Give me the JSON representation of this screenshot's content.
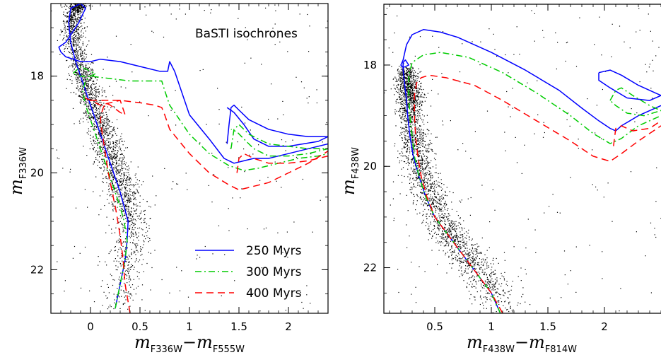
{
  "chart_data": [
    {
      "type": "scatter",
      "title": "BaSTI isochrones",
      "xlabel": {
        "main": "m",
        "sub": "F336W",
        "op": "−",
        "main2": "m",
        "sub2": "F555W"
      },
      "ylabel": {
        "main": "m",
        "sub": "F336W"
      },
      "xlim": [
        -0.4,
        2.4
      ],
      "ylim": [
        22.9,
        16.5
      ],
      "y_inverted": true,
      "xticks": [
        0,
        0.5,
        1,
        1.5,
        2
      ],
      "xtick_labels": [
        "0",
        "0.5",
        "1",
        "1.5",
        "2"
      ],
      "yticks": [
        18,
        20,
        22
      ],
      "ytick_labels": [
        "18",
        "20",
        "22"
      ],
      "legend": {
        "placement": "bottom-right"
      },
      "series": [
        {
          "name": "250 Myrs",
          "color": "#0000ff",
          "dash": "solid",
          "x": [
            0.25,
            0.3,
            0.35,
            0.37,
            0.38,
            0.34,
            0.3,
            0.25,
            0.2,
            0.15,
            0.1,
            0.05,
            0.0,
            -0.05,
            -0.1,
            -0.15,
            -0.2,
            -0.22,
            -0.2,
            -0.1,
            -0.05,
            -0.12,
            -0.25,
            -0.32,
            -0.3,
            -0.25,
            -0.1,
            0.0,
            0.1,
            0.3,
            0.5,
            0.7,
            0.78,
            0.8,
            0.85,
            0.9,
            1.0,
            1.2,
            1.35,
            1.45,
            1.55,
            1.65,
            1.8,
            2.0,
            2.2,
            2.4
          ],
          "y": [
            22.8,
            22.3,
            21.8,
            21.4,
            21.0,
            20.7,
            20.4,
            20.1,
            19.8,
            19.5,
            19.2,
            18.9,
            18.6,
            18.3,
            18.0,
            17.7,
            17.3,
            16.9,
            16.6,
            16.5,
            16.6,
            16.9,
            17.3,
            17.4,
            17.5,
            17.6,
            17.7,
            17.7,
            17.65,
            17.7,
            17.8,
            17.9,
            17.9,
            17.7,
            17.9,
            18.2,
            18.8,
            19.3,
            19.7,
            19.8,
            19.75,
            19.7,
            19.7,
            19.6,
            19.5,
            19.4
          ]
        },
        {
          "name": "250 Myrs loop",
          "color": "#0000ff",
          "dash": "solid",
          "legend": false,
          "x": [
            1.38,
            1.4,
            1.42,
            1.45,
            1.5,
            1.6,
            1.8,
            2.0,
            2.2,
            2.4,
            2.3,
            2.0,
            1.8,
            1.65,
            1.55,
            1.45,
            1.38
          ],
          "y": [
            19.4,
            19.0,
            18.65,
            18.6,
            18.7,
            18.9,
            19.1,
            19.2,
            19.25,
            19.25,
            19.35,
            19.45,
            19.45,
            19.3,
            19.0,
            18.75,
            18.65
          ]
        },
        {
          "name": "300 Myrs",
          "color": "#00cc00",
          "dash": "dashdot",
          "x": [
            0.25,
            0.3,
            0.35,
            0.37,
            0.34,
            0.3,
            0.25,
            0.2,
            0.15,
            0.1,
            0.05,
            0.0,
            -0.05,
            -0.08,
            -0.05,
            0.0,
            0.05,
            -0.1,
            -0.18,
            -0.1,
            0.0,
            0.2,
            0.4,
            0.6,
            0.72,
            0.75,
            0.8,
            0.9,
            1.0,
            1.2,
            1.4,
            1.55,
            1.7,
            1.9,
            2.1,
            2.3,
            2.4
          ],
          "y": [
            22.8,
            22.3,
            21.8,
            21.4,
            21.0,
            20.7,
            20.4,
            20.1,
            19.8,
            19.5,
            19.2,
            18.9,
            18.6,
            18.3,
            18.1,
            18.0,
            17.95,
            17.8,
            17.95,
            18.0,
            18.0,
            18.05,
            18.1,
            18.1,
            18.1,
            18.3,
            18.6,
            18.9,
            19.2,
            19.6,
            19.85,
            19.95,
            19.9,
            19.8,
            19.7,
            19.65,
            19.6
          ]
        },
        {
          "name": "300 Myrs loop",
          "color": "#00cc00",
          "dash": "dashdot",
          "legend": false,
          "x": [
            1.42,
            1.45,
            1.5,
            1.6,
            1.8,
            2.0,
            2.2,
            2.4,
            2.2,
            2.0,
            1.8,
            1.65,
            1.55,
            1.48,
            1.42
          ],
          "y": [
            19.5,
            19.1,
            19.0,
            19.2,
            19.4,
            19.45,
            19.5,
            19.5,
            19.6,
            19.65,
            19.65,
            19.5,
            19.3,
            19.15,
            19.1
          ]
        },
        {
          "name": "400 Myrs",
          "color": "#ff0000",
          "dash": "dashed",
          "x": [
            0.4,
            0.35,
            0.33,
            0.3,
            0.26,
            0.22,
            0.18,
            0.15,
            0.12,
            0.1,
            0.12,
            0.15,
            0.2,
            0.3,
            0.35,
            0.3,
            0.1,
            0.0,
            -0.05,
            0.0,
            0.1,
            0.3,
            0.5,
            0.65,
            0.72,
            0.75,
            0.8,
            1.0,
            1.2,
            1.4,
            1.5,
            1.6,
            1.8,
            2.0,
            2.2,
            2.4
          ],
          "y": [
            22.9,
            22.3,
            21.8,
            21.3,
            20.8,
            20.4,
            20.0,
            19.6,
            19.2,
            18.9,
            18.7,
            18.55,
            18.6,
            18.75,
            18.8,
            18.5,
            18.6,
            18.5,
            18.45,
            18.5,
            18.5,
            18.5,
            18.55,
            18.6,
            18.65,
            18.8,
            19.1,
            19.6,
            20.0,
            20.25,
            20.35,
            20.3,
            20.2,
            20.0,
            19.8,
            19.55
          ]
        },
        {
          "name": "400 Myrs loop",
          "color": "#ff0000",
          "dash": "dashed",
          "legend": false,
          "x": [
            1.48,
            1.5,
            1.55,
            1.65,
            1.8,
            2.0,
            2.2,
            2.4
          ],
          "y": [
            20.0,
            19.7,
            19.6,
            19.7,
            19.8,
            19.8,
            19.75,
            19.65
          ]
        }
      ]
    },
    {
      "type": "scatter",
      "title": "",
      "xlabel": {
        "main": "m",
        "sub": "F438W",
        "op": "−",
        "main2": "m",
        "sub2": "F814W"
      },
      "ylabel": {
        "main": "m",
        "sub": "F438W"
      },
      "xlim": [
        0.05,
        2.5
      ],
      "ylim": [
        22.9,
        16.8
      ],
      "y_inverted": true,
      "xticks": [
        0.5,
        1,
        1.5,
        2
      ],
      "xtick_labels": [
        "0.5",
        "1",
        "1.5",
        "2"
      ],
      "yticks": [
        18,
        20,
        22
      ],
      "ytick_labels": [
        "18",
        "20",
        "22"
      ],
      "series": [
        {
          "name": "250 Myrs",
          "color": "#0000ff",
          "dash": "solid",
          "x": [
            1.08,
            1.0,
            0.9,
            0.8,
            0.7,
            0.6,
            0.5,
            0.42,
            0.36,
            0.31,
            0.28,
            0.26,
            0.25,
            0.24,
            0.23,
            0.22,
            0.22,
            0.24,
            0.27,
            0.22,
            0.2,
            0.22,
            0.25,
            0.3,
            0.4,
            0.55,
            0.7,
            1.0,
            1.3,
            1.6,
            1.8,
            1.95,
            2.05,
            2.1,
            2.15,
            2.3,
            2.5
          ],
          "y": [
            22.9,
            22.5,
            22.2,
            21.9,
            21.6,
            21.3,
            21.0,
            20.6,
            20.2,
            19.8,
            19.4,
            19.0,
            18.7,
            18.5,
            18.3,
            18.1,
            17.95,
            17.9,
            18.0,
            18.05,
            18.0,
            17.9,
            17.6,
            17.4,
            17.3,
            17.35,
            17.45,
            17.75,
            18.1,
            18.5,
            18.85,
            19.1,
            19.25,
            19.3,
            19.2,
            19.0,
            18.8
          ]
        },
        {
          "name": "250 Myrs loop",
          "color": "#0000ff",
          "dash": "solid",
          "legend": false,
          "x": [
            1.95,
            2.05,
            2.15,
            2.3,
            2.45,
            2.5,
            2.4,
            2.2,
            2.05,
            1.95,
            1.95
          ],
          "y": [
            18.15,
            18.1,
            18.2,
            18.4,
            18.55,
            18.6,
            18.7,
            18.65,
            18.45,
            18.3,
            18.15
          ]
        },
        {
          "name": "300 Myrs",
          "color": "#00cc00",
          "dash": "dashdot",
          "x": [
            1.08,
            1.0,
            0.9,
            0.8,
            0.7,
            0.6,
            0.5,
            0.42,
            0.36,
            0.32,
            0.3,
            0.28,
            0.27,
            0.27,
            0.3,
            0.4,
            0.55,
            0.8,
            1.1,
            1.4,
            1.7,
            1.9,
            2.05,
            2.15,
            2.3,
            2.5
          ],
          "y": [
            22.9,
            22.5,
            22.2,
            21.9,
            21.6,
            21.3,
            21.0,
            20.6,
            20.2,
            19.8,
            19.4,
            19.0,
            18.6,
            18.2,
            17.95,
            17.8,
            17.75,
            17.85,
            18.15,
            18.55,
            19.0,
            19.35,
            19.55,
            19.45,
            19.2,
            19.0
          ]
        },
        {
          "name": "300 Myrs loop",
          "color": "#00cc00",
          "dash": "dashdot",
          "legend": false,
          "x": [
            2.05,
            2.1,
            2.15,
            2.25,
            2.4,
            2.5,
            2.35,
            2.2,
            2.1,
            2.05
          ],
          "y": [
            18.7,
            18.5,
            18.45,
            18.6,
            18.8,
            18.9,
            19.0,
            18.95,
            18.8,
            18.7
          ]
        },
        {
          "name": "400 Myrs",
          "color": "#ff0000",
          "dash": "dashed",
          "x": [
            1.1,
            1.0,
            0.9,
            0.8,
            0.7,
            0.6,
            0.5,
            0.43,
            0.38,
            0.35,
            0.33,
            0.32,
            0.32,
            0.34,
            0.38,
            0.45,
            0.6,
            0.85,
            1.1,
            1.4,
            1.7,
            1.9,
            2.05,
            2.15,
            2.3,
            2.5
          ],
          "y": [
            22.9,
            22.5,
            22.2,
            21.9,
            21.6,
            21.3,
            21.0,
            20.6,
            20.2,
            19.8,
            19.4,
            19.0,
            18.6,
            18.35,
            18.25,
            18.2,
            18.25,
            18.4,
            18.7,
            19.1,
            19.5,
            19.8,
            19.9,
            19.75,
            19.5,
            19.2
          ]
        },
        {
          "name": "400 Myrs loop",
          "color": "#ff0000",
          "dash": "dashed",
          "legend": false,
          "x": [
            2.08,
            2.1,
            2.15,
            2.25,
            2.4,
            2.5
          ],
          "y": [
            19.6,
            19.25,
            19.2,
            19.3,
            19.25,
            19.1
          ]
        }
      ]
    }
  ]
}
